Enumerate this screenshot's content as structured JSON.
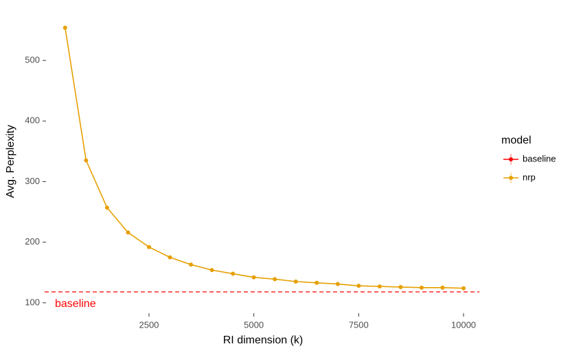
{
  "chart_data": {
    "type": "line",
    "x_label": "RI dimension (k)",
    "y_label": "Avg. Perplexity",
    "legend_title": "model",
    "x": [
      500,
      1000,
      1500,
      2000,
      2500,
      3000,
      3500,
      4000,
      4500,
      5000,
      5500,
      6000,
      6500,
      7000,
      7500,
      8000,
      8500,
      9000,
      9500,
      10000
    ],
    "series": [
      {
        "name": "baseline",
        "color": "#ff0000",
        "hline": 118
      },
      {
        "name": "nrp",
        "color": "#e69f00",
        "values": [
          554,
          335,
          257,
          216,
          192,
          175,
          163,
          154,
          148,
          142,
          139,
          135,
          133,
          131,
          128,
          127,
          126,
          125,
          125,
          124
        ]
      }
    ],
    "annotations": [
      {
        "text": "baseline",
        "color": "#ff0000"
      }
    ],
    "xlim": [
      61,
      10377
    ],
    "ylim": [
      84,
      568
    ],
    "xticks": [
      2500,
      5000,
      7500,
      10000
    ],
    "yticks": [
      100,
      200,
      300,
      400,
      500
    ],
    "grid": false
  }
}
